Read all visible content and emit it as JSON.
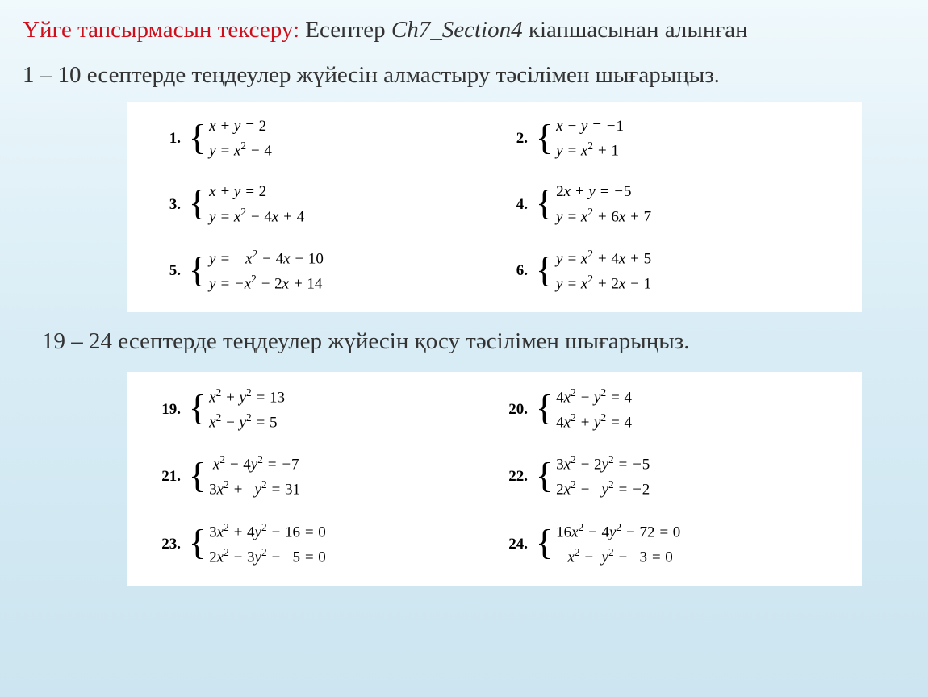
{
  "title": {
    "red_part": "Үйге тапсырмасын тексеру:",
    "black_part1": " Есептер  ",
    "italic_part": "Ch7_Section4",
    "black_part2": "  кіапшасынан алынған"
  },
  "instruction1": "1 – 10 есептерде теңдеулер жүйесін алмастыру тәсілімен шығарыңыз.",
  "instruction2": "19 – 24 есептерде теңдеулер жүйесін қосу тәсілімен шығарыңыз.",
  "problems_set1": [
    {
      "num": "1.",
      "eq1": "x + y = 2",
      "eq2": "y = x² − 4"
    },
    {
      "num": "2.",
      "eq1": "x − y = −1",
      "eq2": "y = x² + 1"
    },
    {
      "num": "3.",
      "eq1": "x + y = 2",
      "eq2": "y = x² − 4x + 4"
    },
    {
      "num": "4.",
      "eq1": "2x + y = −5",
      "eq2": "y = x² + 6x + 7"
    },
    {
      "num": "5.",
      "eq1": "y =    x² − 4x − 10",
      "eq2": "y = −x² − 2x + 14"
    },
    {
      "num": "6.",
      "eq1": "y = x² + 4x + 5",
      "eq2": "y = x² + 2x − 1"
    }
  ],
  "problems_set2": [
    {
      "num": "19.",
      "eq1": "x² + y² = 13",
      "eq2": "x² − y² = 5"
    },
    {
      "num": "20.",
      "eq1": "4x² − y² = 4",
      "eq2": "4x² + y² = 4"
    },
    {
      "num": "21.",
      "eq1": "x² − 4y² = −7",
      "eq2": "3x² +   y² = 31"
    },
    {
      "num": "22.",
      "eq1": "3x² − 2y² = −5",
      "eq2": "2x² −   y² = −2"
    },
    {
      "num": "23.",
      "eq1": "3x² + 4y² − 16 = 0",
      "eq2": "2x² − 3y² −   5 = 0"
    },
    {
      "num": "24.",
      "eq1": "16x² − 4y² − 72 = 0",
      "eq2": "x² − y² −   3 = 0"
    }
  ],
  "styling": {
    "background_gradient": [
      "#f0f9fc",
      "#e5f3f9",
      "#d8ecf5",
      "#cce5f0"
    ],
    "title_red_color": "#ce0e1a",
    "text_color": "#333333",
    "problems_background": "#ffffff",
    "title_fontsize": 29,
    "equation_fontsize": 19,
    "font_family": "Times New Roman"
  }
}
